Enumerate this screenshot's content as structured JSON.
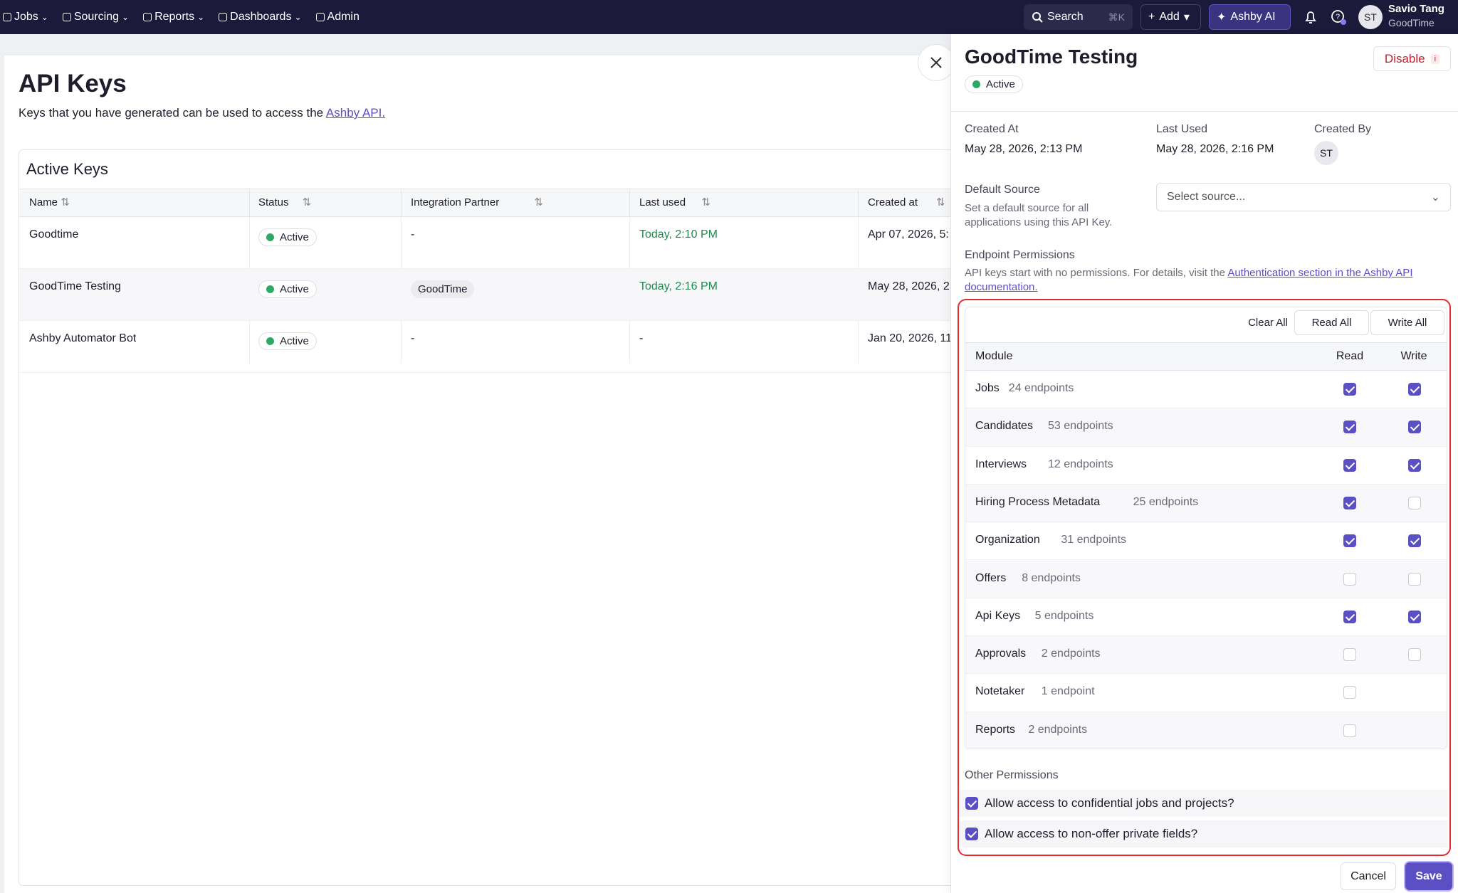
{
  "nav": {
    "items": [
      "Jobs",
      "Sourcing",
      "Reports",
      "Dashboards",
      "Admin"
    ],
    "search": "Search",
    "shortcut": "⌘K",
    "add": "Add",
    "ai": "Ashby AI",
    "user": {
      "initials": "ST",
      "name": "Savio Tang",
      "org": "GoodTime"
    }
  },
  "page": {
    "title": "API Keys",
    "description": "Keys that you have generated can be used to access the",
    "link": "Ashby API."
  },
  "table": {
    "title": "Active Keys",
    "columns": [
      "Name",
      "Status",
      "Integration Partner",
      "Last used",
      "Created at"
    ],
    "rows": [
      [
        "Goodtime",
        "Active",
        "-",
        "Today, 2:10 PM",
        "Apr 07, 2026, 5:"
      ],
      [
        "GoodTime Testing",
        "Active",
        "GoodTime",
        "Today, 2:16 PM",
        "May 28, 2026, 2"
      ],
      [
        "Ashby Automator Bot",
        "Active",
        "-",
        "-",
        "Jan 20, 2026, 11:"
      ]
    ]
  },
  "drawer": {
    "title": "GoodTime Testing",
    "disable": "Disable",
    "status": "Active",
    "created_at": {
      "label": "Created At",
      "value": "May 28, 2026, 2:13 PM"
    },
    "last_used": {
      "label": "Last Used",
      "value": "May 28, 2026, 2:16 PM"
    },
    "created_by": {
      "label": "Created By",
      "initials": "ST"
    },
    "default_source": {
      "label": "Default Source",
      "description": "Set a default source for all applications using this API Key.",
      "placeholder": "Select source..."
    },
    "endpoint_permissions": {
      "label": "Endpoint Permissions",
      "description": "API keys start with no permissions. For details, visit the",
      "link": "Authentication section in the Ashby API documentation."
    },
    "buttons": {
      "clear": "Clear All",
      "read": "Read All",
      "write": "Write All"
    },
    "headers": {
      "module": "Module",
      "read": "Read",
      "write": "Write"
    },
    "modules": [
      {
        "name": "Jobs",
        "endpoints": "24 endpoints",
        "read": true,
        "write": true
      },
      {
        "name": "Candidates",
        "endpoints": "53 endpoints",
        "read": true,
        "write": true
      },
      {
        "name": "Interviews",
        "endpoints": "12 endpoints",
        "read": true,
        "write": true
      },
      {
        "name": "Hiring Process Metadata",
        "endpoints": "25 endpoints",
        "read": true,
        "write": false
      },
      {
        "name": "Organization",
        "endpoints": "31 endpoints",
        "read": true,
        "write": true
      },
      {
        "name": "Offers",
        "endpoints": "8 endpoints",
        "read": false,
        "write": false
      },
      {
        "name": "Api Keys",
        "endpoints": "5 endpoints",
        "read": true,
        "write": true
      },
      {
        "name": "Approvals",
        "endpoints": "2 endpoints",
        "read": false,
        "write": false
      },
      {
        "name": "Notetaker",
        "endpoints": "1 endpoint",
        "read": false,
        "write": null
      },
      {
        "name": "Reports",
        "endpoints": "2 endpoints",
        "read": false,
        "write": null
      }
    ],
    "other_permissions": {
      "label": "Other Permissions",
      "items": [
        {
          "label": "Allow access to confidential jobs and projects?",
          "checked": true
        },
        {
          "label": "Allow access to non-offer private fields?",
          "checked": true
        }
      ]
    },
    "cancel": "Cancel",
    "save": "Save"
  }
}
